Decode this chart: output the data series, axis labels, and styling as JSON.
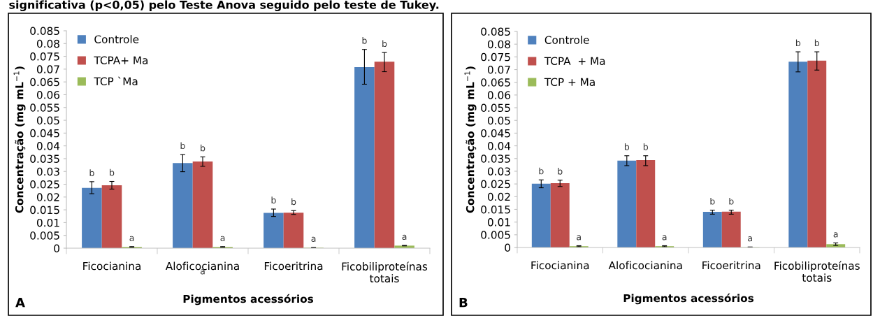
{
  "chart_data": [
    {
      "type": "bar",
      "xlabel": "Pigmentos acessórios",
      "ylabel": "Concentração (mg mL$^{−1}$)",
      "categories": [
        "Ficocianina",
        "Aloficocianina",
        "Ficoeritrina",
        "Ficobiliproteínas totais"
      ],
      "ylim": [
        0,
        0.085
      ],
      "yticks": [
        {
          "value": 0,
          "label": "0"
        },
        0.005,
        0.01,
        0.015,
        0.02,
        0.025,
        0.03,
        0.035,
        0.04,
        0.045,
        0.05,
        0.055,
        0.06,
        0.065,
        0.07,
        0.075,
        0.08,
        0.085
      ],
      "grid": false,
      "legend": "top left",
      "series": [
        {
          "name": "Controle",
          "color": "#4f81bd",
          "values": [
            0.0236,
            0.0333,
            0.0138,
            0.0708
          ],
          "errors": [
            [
              0.0213,
              0.026
            ],
            [
              0.0299,
              0.0366
            ],
            [
              0.0124,
              0.0153
            ],
            [
              0.0641,
              0.0777
            ]
          ],
          "value_labels": [
            "b",
            "b",
            "b",
            "b"
          ]
        },
        {
          "name": "TCPA+ Ma",
          "color": "#c0504d",
          "values": [
            0.0246,
            0.0339,
            0.0139,
            0.0729
          ],
          "errors": [
            [
              0.0231,
              0.0261
            ],
            [
              0.032,
              0.0357
            ],
            [
              0.0132,
              0.0147
            ],
            [
              0.069,
              0.0765
            ]
          ],
          "value_labels": [
            "b",
            "b",
            "b",
            "b"
          ]
        },
        {
          "name": "TCP `Ma",
          "color": "#9bbb59",
          "values": [
            0.0005,
            0.0005,
            0.0002,
            0.001
          ],
          "errors": [
            [
              0.0004,
              0.0006
            ],
            [
              0.0004,
              0.0006
            ],
            [
              0.0001,
              0.0003
            ],
            [
              0.0009,
              0.0011
            ]
          ],
          "value_labels": [
            "a",
            "a",
            "a",
            "a"
          ]
        }
      ],
      "annotations": [
        "significativa (p<0,05) pelo Teste Anova seguido pelo teste de Tukey.",
        "A",
        "a"
      ]
    },
    {
      "type": "bar",
      "xlabel": "Pigmentos acessórios",
      "ylabel": "Concentração (mg mL$^{−1}$)",
      "categories": [
        "Ficocianina",
        "Aloficocianina",
        "Ficoeritrina",
        "Ficobiliproteínas totais"
      ],
      "ylim": [
        0,
        0.085
      ],
      "yticks": [
        {
          "value": 0,
          "label": "0"
        },
        0.005,
        0.01,
        0.015,
        0.02,
        0.025,
        0.03,
        0.035,
        0.04,
        0.045,
        0.05,
        0.055,
        0.06,
        0.065,
        0.07,
        0.075,
        0.08,
        0.085
      ],
      "grid": false,
      "legend": "top left",
      "series": [
        {
          "name": "Controle",
          "color": "#4f81bd",
          "values": [
            0.0251,
            0.0342,
            0.014,
            0.0731
          ],
          "errors": [
            [
              0.0235,
              0.0266
            ],
            [
              0.0322,
              0.0361
            ],
            [
              0.0131,
              0.0147
            ],
            [
              0.0691,
              0.077
            ]
          ],
          "value_labels": [
            "b",
            "b",
            "b",
            "b"
          ]
        },
        {
          "name": "TCPA  + Ma",
          "color": "#c0504d",
          "values": [
            0.0253,
            0.0344,
            0.0141,
            0.0735
          ],
          "errors": [
            [
              0.024,
              0.0265
            ],
            [
              0.0322,
              0.0361
            ],
            [
              0.0131,
              0.0147
            ],
            [
              0.0698,
              0.077
            ]
          ],
          "value_labels": [
            "b",
            "b",
            "b",
            "b"
          ]
        },
        {
          "name": "TCP + Ma",
          "color": "#9bbb59",
          "values": [
            0.0005,
            0.0005,
            0.0001,
            0.0013
          ],
          "errors": [
            [
              0.0003,
              0.0007
            ],
            [
              0.0003,
              0.0007
            ],
            [
              0.0,
              0.0002
            ],
            [
              0.0008,
              0.0018
            ]
          ],
          "value_labels": [
            "a",
            "a",
            "a",
            "a"
          ]
        }
      ],
      "annotations": [
        "B"
      ]
    }
  ]
}
